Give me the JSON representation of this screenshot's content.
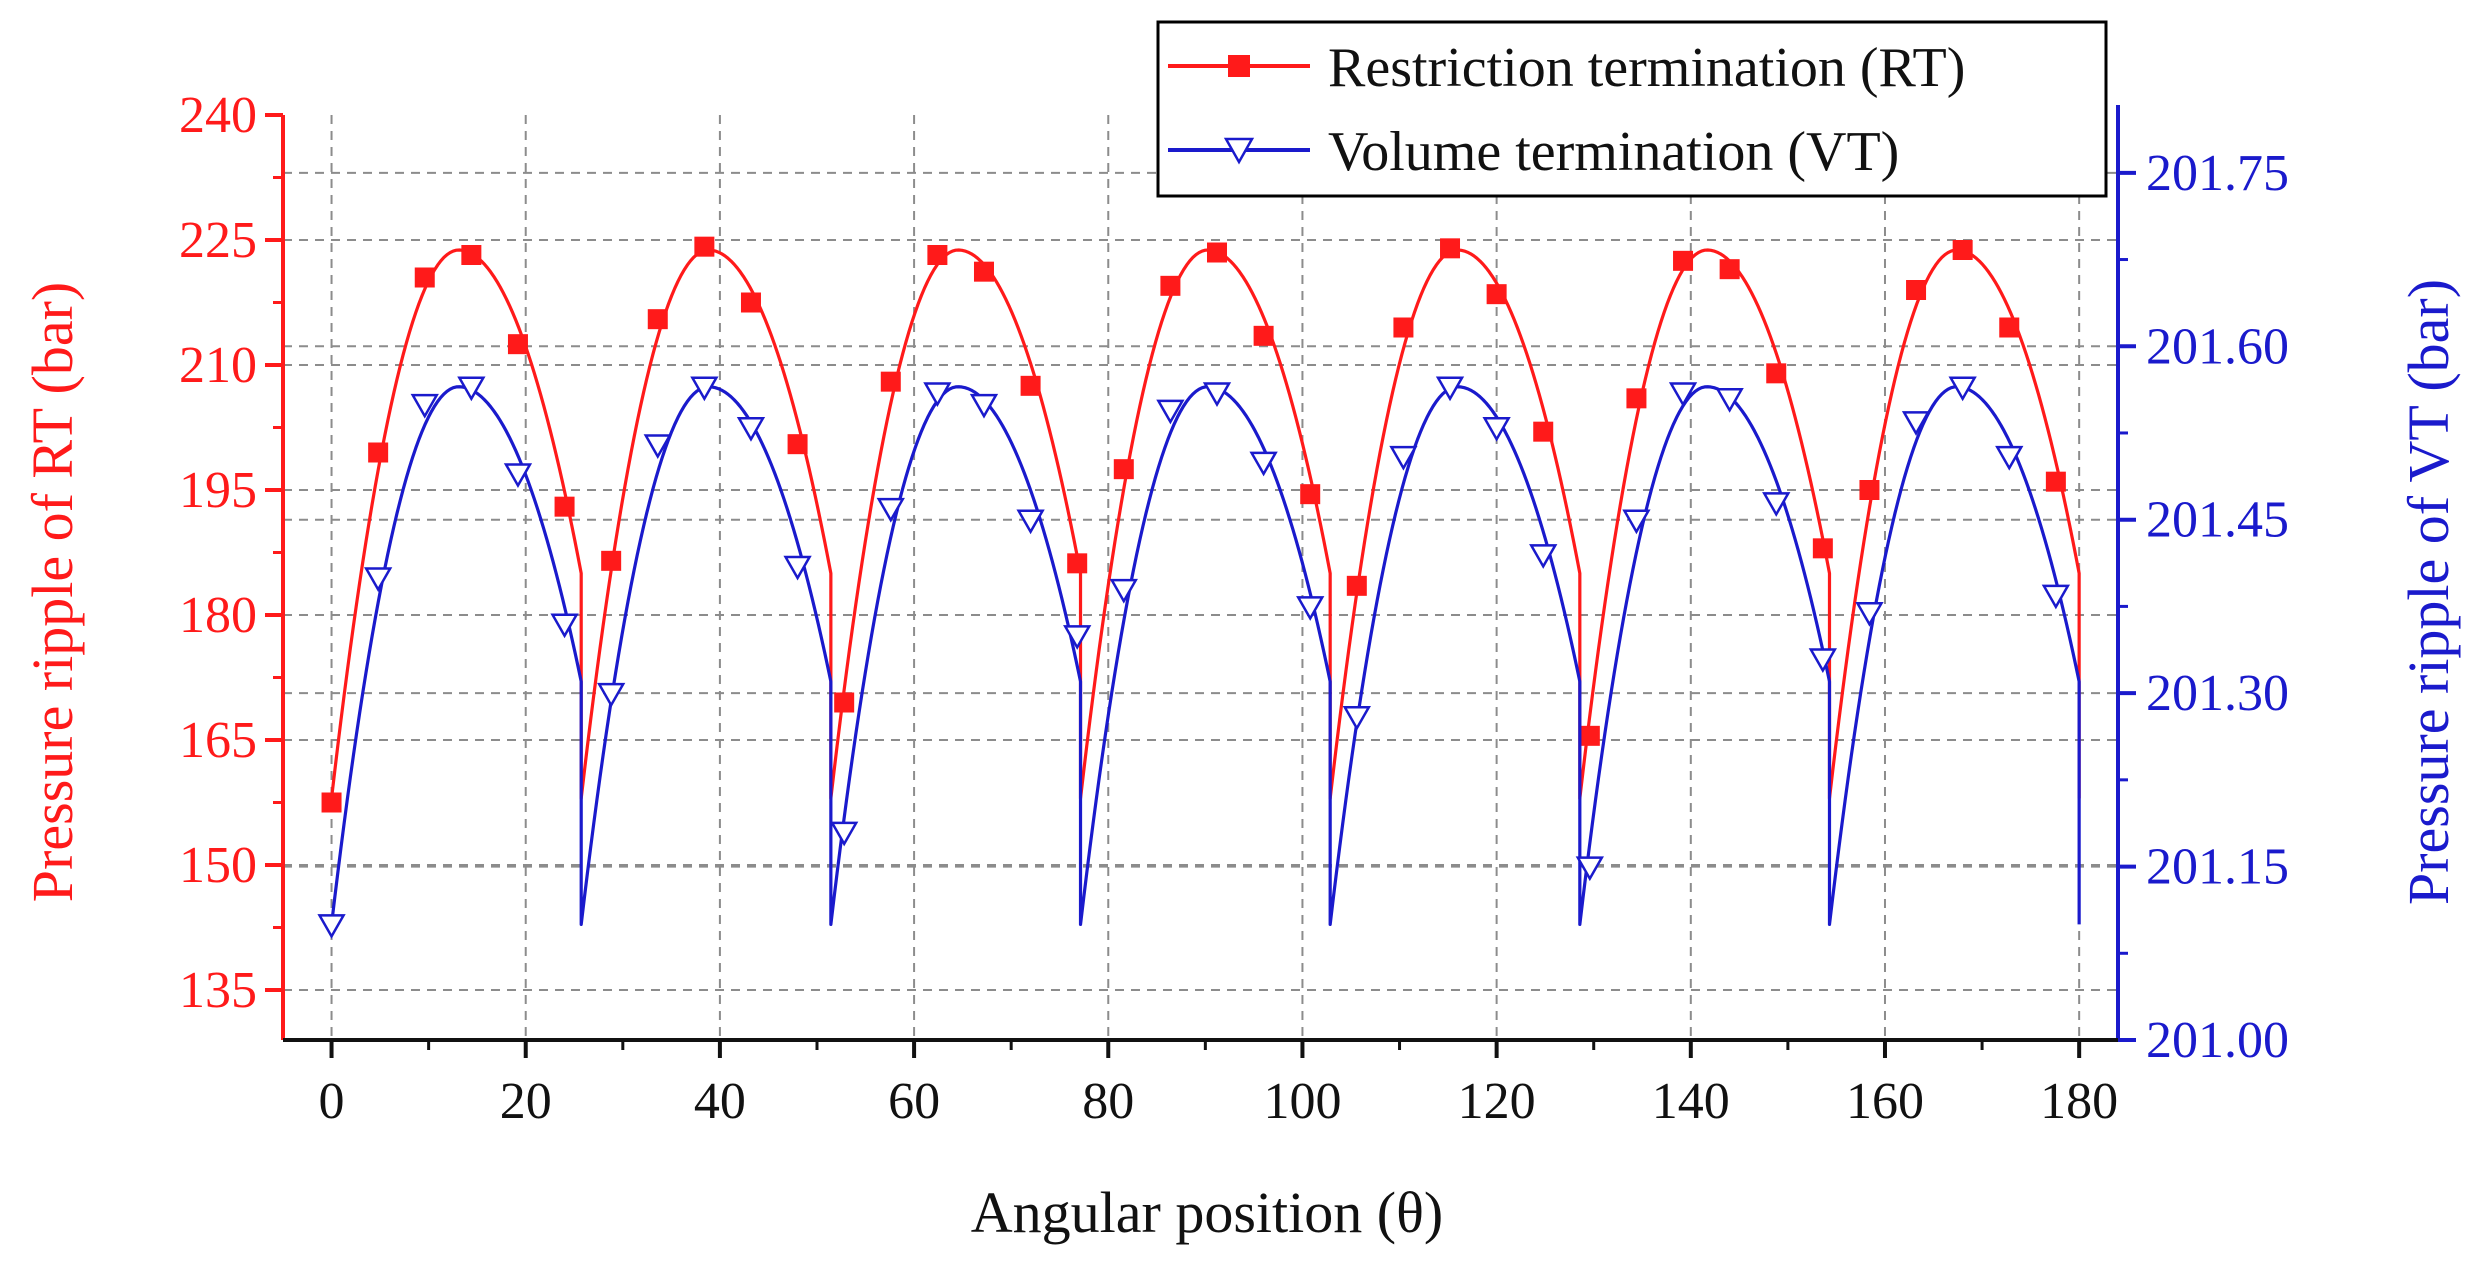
{
  "chart_data": {
    "type": "line",
    "xlabel": "Angular position (θ)",
    "xlim": [
      -5,
      184
    ],
    "xticks": [
      0,
      20,
      40,
      60,
      80,
      100,
      120,
      140,
      160,
      180
    ],
    "xtick_labels": [
      "0",
      "20",
      "40",
      "60",
      "80",
      "100",
      "120",
      "140",
      "160",
      "180"
    ],
    "grid": true,
    "legend_location": "top-right",
    "period": 25.714,
    "num_periods": 7,
    "left_axis": {
      "label": "Pressure ripple of  RT (bar)",
      "ylim": [
        129,
        240
      ],
      "ticks": [
        135,
        150,
        165,
        180,
        195,
        210,
        225,
        240
      ],
      "tick_labels": [
        "135",
        "150",
        "165",
        "180",
        "195",
        "210",
        "225",
        "240"
      ]
    },
    "right_axis": {
      "label": "Pressure ripple of  VT (bar)",
      "ylim": [
        201.0,
        201.8
      ],
      "ticks": [
        201.0,
        201.15,
        201.3,
        201.45,
        201.6,
        201.75
      ],
      "tick_labels": [
        "201.00",
        "201.15",
        "201.30",
        "201.45",
        "201.60",
        "201.75"
      ]
    },
    "series": [
      {
        "name": "Restriction termination (RT)",
        "axis": "left",
        "color": "#ff1a1a",
        "marker": "square",
        "curve": {
          "start": 158,
          "peak": 223.8,
          "peak_at": 13.1,
          "end": 185
        },
        "markers_x": [
          0,
          4.8,
          9.6,
          14.4,
          19.2,
          24,
          28.8,
          33.6,
          38.4,
          43.2,
          48,
          52.8,
          57.6,
          62.4,
          67.2,
          72,
          76.8,
          81.6,
          86.4,
          91.2,
          96,
          100.8,
          105.6,
          110.4,
          115.2,
          120,
          124.8,
          129.6,
          134.4,
          139.2,
          144,
          148.8,
          153.6,
          158.4,
          163.2,
          168,
          172.8,
          177.6
        ],
        "markers_y": [
          157.5,
          199.5,
          220.5,
          223.2,
          212.5,
          193,
          186.5,
          215.5,
          224.2,
          217.5,
          200.5,
          169.5,
          208,
          223.2,
          221.2,
          207.5,
          186.2,
          197.5,
          219.5,
          223.5,
          213.5,
          194.5,
          183.5,
          214.5,
          224,
          218.5,
          202,
          165.5,
          206,
          222.5,
          221.5,
          209,
          188,
          195,
          219,
          223.8,
          214.5,
          196
        ]
      },
      {
        "name": "Volume termination (VT)",
        "axis": "right",
        "color": "#1a1acc",
        "marker": "triangle-down",
        "curve": {
          "start": 201.1,
          "peak": 201.565,
          "peak_at": 13.1,
          "end": 201.31
        },
        "markers_x": [
          0,
          4.8,
          9.6,
          14.4,
          19.2,
          24,
          28.8,
          33.6,
          38.4,
          43.2,
          48,
          52.8,
          57.6,
          62.4,
          67.2,
          72,
          76.8,
          81.6,
          86.4,
          91.2,
          96,
          100.8,
          105.6,
          110.4,
          115.2,
          120,
          124.8,
          129.6,
          134.4,
          139.2,
          144,
          148.8,
          153.6,
          158.4,
          163.2,
          168,
          172.8,
          177.6
        ],
        "markers_y": [
          201.1,
          201.4,
          201.55,
          201.565,
          201.49,
          201.36,
          201.3,
          201.515,
          201.565,
          201.53,
          201.41,
          201.18,
          201.46,
          201.56,
          201.55,
          201.45,
          201.35,
          201.39,
          201.545,
          201.56,
          201.5,
          201.375,
          201.28,
          201.505,
          201.565,
          201.53,
          201.42,
          201.15,
          201.45,
          201.56,
          201.555,
          201.465,
          201.33,
          201.37,
          201.535,
          201.565,
          201.505,
          201.385
        ]
      }
    ]
  }
}
